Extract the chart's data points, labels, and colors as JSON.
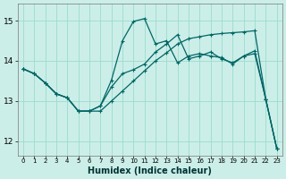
{
  "xlabel": "Humidex (Indice chaleur)",
  "background_color": "#cceee8",
  "grid_color": "#99ddcc",
  "line_color": "#006666",
  "x": [
    0,
    1,
    2,
    3,
    4,
    5,
    6,
    7,
    8,
    9,
    10,
    11,
    12,
    13,
    14,
    15,
    16,
    17,
    18,
    19,
    20,
    21,
    22,
    23
  ],
  "line1": [
    13.8,
    13.68,
    13.45,
    13.18,
    13.08,
    12.75,
    12.75,
    12.88,
    13.52,
    14.5,
    14.98,
    15.05,
    14.42,
    14.5,
    13.95,
    14.12,
    14.18,
    14.12,
    14.08,
    13.92,
    14.12,
    14.25,
    13.05,
    11.82
  ],
  "line2": [
    13.8,
    13.68,
    13.45,
    13.18,
    13.08,
    12.75,
    12.75,
    12.88,
    13.35,
    13.68,
    13.78,
    13.92,
    14.22,
    14.42,
    14.65,
    14.05,
    14.12,
    14.22,
    14.05,
    13.95,
    14.12,
    14.18,
    13.05,
    11.82
  ],
  "line3": [
    13.8,
    13.68,
    13.45,
    13.18,
    13.08,
    12.75,
    12.75,
    12.75,
    13.0,
    13.25,
    13.5,
    13.75,
    14.0,
    14.2,
    14.42,
    14.55,
    14.6,
    14.65,
    14.68,
    14.7,
    14.72,
    14.75,
    13.05,
    11.82
  ],
  "ylim": [
    11.65,
    15.42
  ],
  "yticks": [
    12,
    13,
    14,
    15
  ],
  "xlim": [
    -0.5,
    23.5
  ]
}
